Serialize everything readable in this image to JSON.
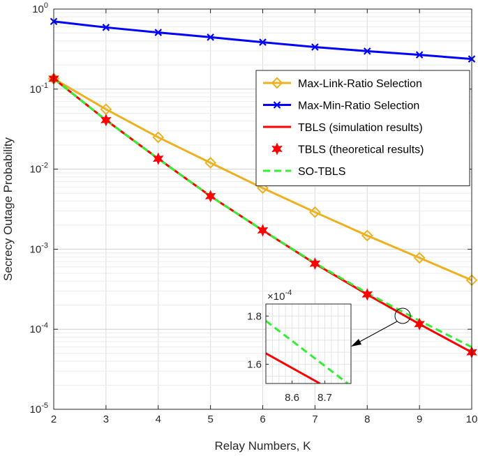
{
  "chart_data": {
    "type": "line",
    "xlabel": "Relay Numbers, K",
    "ylabel": "Secrecy Outage Probability",
    "yscale": "log",
    "xlim": [
      2,
      10
    ],
    "ylim": [
      1e-05,
      1
    ],
    "grid": true,
    "x": [
      2,
      3,
      4,
      5,
      6,
      7,
      8,
      9,
      10
    ],
    "xtick_labels": [
      "2",
      "3",
      "4",
      "5",
      "6",
      "7",
      "8",
      "9",
      "10"
    ],
    "ytick_labels": [
      {
        "base": "10",
        "exp": "-5"
      },
      {
        "base": "10",
        "exp": "-4"
      },
      {
        "base": "10",
        "exp": "-3"
      },
      {
        "base": "10",
        "exp": "-2"
      },
      {
        "base": "10",
        "exp": "-1"
      },
      {
        "base": "10",
        "exp": "0"
      }
    ],
    "legend_position": "right",
    "series": [
      {
        "name": "Max-Link-Ratio Selection",
        "color": "#EDB120",
        "marker": "diamond",
        "line": "solid",
        "values": [
          0.135,
          0.056,
          0.025,
          0.012,
          0.0058,
          0.0029,
          0.00148,
          0.00078,
          0.00041
        ]
      },
      {
        "name": "Max-Min-Ratio Selection",
        "color": "#0000FF",
        "marker": "x",
        "line": "solid",
        "values": [
          0.7,
          0.59,
          0.51,
          0.445,
          0.385,
          0.335,
          0.298,
          0.268,
          0.238
        ]
      },
      {
        "name": "TBLS (simulation results)",
        "color": "#FF0000",
        "marker": "none",
        "line": "solid",
        "values": [
          0.135,
          0.041,
          0.0135,
          0.0046,
          0.00172,
          0.00066,
          0.000272,
          0.000116,
          5.15e-05
        ]
      },
      {
        "name": "TBLS (theoretical results)",
        "color": "#FF0000",
        "marker": "hexagram",
        "line": "none",
        "values": [
          0.135,
          0.041,
          0.0135,
          0.0046,
          0.00172,
          0.00066,
          0.000272,
          0.000116,
          5.15e-05
        ]
      },
      {
        "name": "SO-TBLS",
        "color": "#33EE33",
        "marker": "none",
        "line": "dashed",
        "values": [
          0.135,
          0.041,
          0.0135,
          0.0046,
          0.00172,
          0.00067,
          0.000283,
          0.000128,
          5.98e-05
        ]
      }
    ],
    "inset": {
      "xlim": [
        8.52,
        8.78
      ],
      "ylim": [
        1.52,
        1.85
      ],
      "exponent_label": {
        "prefix": "×10",
        "exp": "-4"
      },
      "xtick_labels": [
        "8.6",
        "8.7"
      ],
      "xticks": [
        8.6,
        8.7
      ],
      "ytick_labels": [
        "1.6",
        "1.8"
      ],
      "yticks": [
        1.6,
        1.8
      ],
      "lines": [
        {
          "name": "TBLS (simulation results)",
          "color": "#FF0000",
          "dash": false,
          "points": [
            [
              8.52,
              1.645
            ],
            [
              8.685,
              1.52
            ]
          ]
        },
        {
          "name": "SO-TBLS",
          "color": "#33EE33",
          "dash": true,
          "points": [
            [
              8.52,
              1.78
            ],
            [
              8.77,
              1.52
            ]
          ]
        }
      ]
    }
  }
}
